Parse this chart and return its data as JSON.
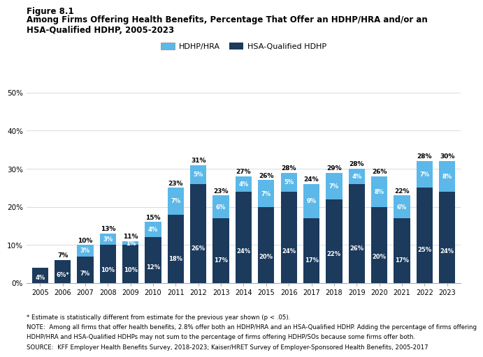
{
  "years": [
    2005,
    2006,
    2007,
    2008,
    2009,
    2010,
    2011,
    2012,
    2013,
    2014,
    2015,
    2016,
    2017,
    2018,
    2019,
    2020,
    2021,
    2022,
    2023
  ],
  "hsa_values": [
    4,
    6,
    7,
    10,
    10,
    12,
    18,
    26,
    17,
    24,
    20,
    24,
    17,
    22,
    26,
    20,
    17,
    25,
    24
  ],
  "hdhp_values": [
    0,
    0,
    3,
    3,
    1,
    4,
    7,
    5,
    6,
    4,
    7,
    5,
    9,
    7,
    4,
    8,
    6,
    7,
    8
  ],
  "hsa_labels": [
    "4%",
    "6%*",
    "7%",
    "10%",
    "10%",
    "12%",
    "18%",
    "26%",
    "17%",
    "24%",
    "20%",
    "24%",
    "17%",
    "22%",
    "26%",
    "20%",
    "17%",
    "25%",
    "24%"
  ],
  "hdhp_labels": [
    "",
    "",
    "3%",
    "3%",
    "1%",
    "4%",
    "7%",
    "5%",
    "6%",
    "4%",
    "7%",
    "5%",
    "9%",
    "7%",
    "4%",
    "8%",
    "6%",
    "7%",
    "8%"
  ],
  "total_labels": [
    "",
    "7%",
    "10%",
    "13%",
    "11%",
    "15%",
    "23%",
    "31%",
    "23%",
    "27%",
    "26%",
    "28%",
    "24%",
    "29%",
    "28%",
    "26%",
    "22%",
    "28%",
    "30%"
  ],
  "hsa_color": "#1b3a5c",
  "hdhp_color": "#5bb8e8",
  "figure_label": "Figure 8.1",
  "title_line1": "Among Firms Offering Health Benefits, Percentage That Offer an HDHP/HRA and/or an",
  "title_line2": "HSA-Qualified HDHP, 2005-2023",
  "legend_hdhp": "HDHP/HRA",
  "legend_hsa": "HSA-Qualified HDHP",
  "footnote1": "* Estimate is statistically different from estimate for the previous year shown (p < .05).",
  "footnote2": "NOTE:  Among all firms that offer health benefits, 2.8% offer both an HDHP/HRA and an HSA-Qualified HDHP. Adding the percentage of firms offering",
  "footnote3": "HDHP/HRA and HSA-Qualified HDHPs may not sum to the percentage of firms offering HDHP/SOs because some firms offer both.",
  "footnote4": "SOURCE:  KFF Employer Health Benefits Survey, 2018-2023; Kaiser/HRET Survey of Employer-Sponsored Health Benefits, 2005-2017",
  "ylim": [
    0,
    50
  ],
  "yticks": [
    0,
    10,
    20,
    30,
    40,
    50
  ]
}
